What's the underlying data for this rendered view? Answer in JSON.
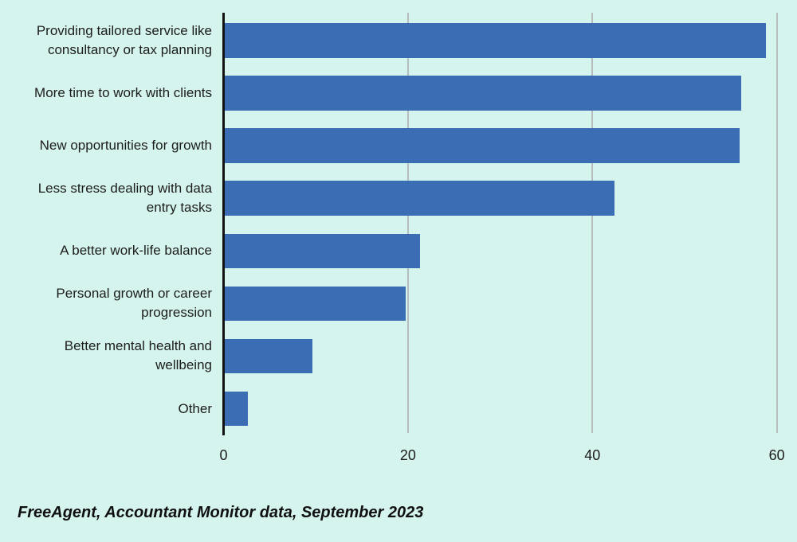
{
  "page": {
    "background_color": "#d5f4ee",
    "caption": "FreeAgent, Accountant Monitor data, September 2023"
  },
  "chart_data": {
    "type": "bar",
    "orientation": "horizontal",
    "title": "",
    "xlabel": "",
    "ylabel": "",
    "xlim": [
      0,
      60
    ],
    "x_ticks": [
      "0",
      "20",
      "40",
      "60"
    ],
    "x_tick_values": [
      0,
      20,
      40,
      60
    ],
    "grid": "vertical gridlines at 20, 40, 60",
    "legend": "none",
    "categories": [
      "Providing tailored service like consultancy or tax planning",
      "More time to work with clients",
      "New opportunities for growth",
      "Less stress dealing with data entry tasks",
      "A better work-life balance",
      "Personal growth or career progression",
      "Better mental health and wellbeing",
      "Other"
    ],
    "category_lines": [
      [
        "Providing tailored service like",
        "consultancy or tax planning"
      ],
      [
        "More time to work with clients"
      ],
      [
        "New opportunities for growth"
      ],
      [
        "Less stress dealing with data",
        "entry tasks"
      ],
      [
        "A better work-life balance"
      ],
      [
        "Personal growth or career",
        "progression"
      ],
      [
        "Better mental health and",
        "wellbeing"
      ],
      [
        "Other"
      ]
    ],
    "values": [
      58.7,
      56.0,
      55.8,
      42.3,
      21.2,
      19.6,
      9.5,
      2.5
    ],
    "colors": {
      "background": "#d5f4ee",
      "bar": "#3a6db4",
      "gridline": "#b7bdbd",
      "axis": "#121212",
      "text": "#1c1c1c",
      "caption_text": "#101010"
    }
  }
}
